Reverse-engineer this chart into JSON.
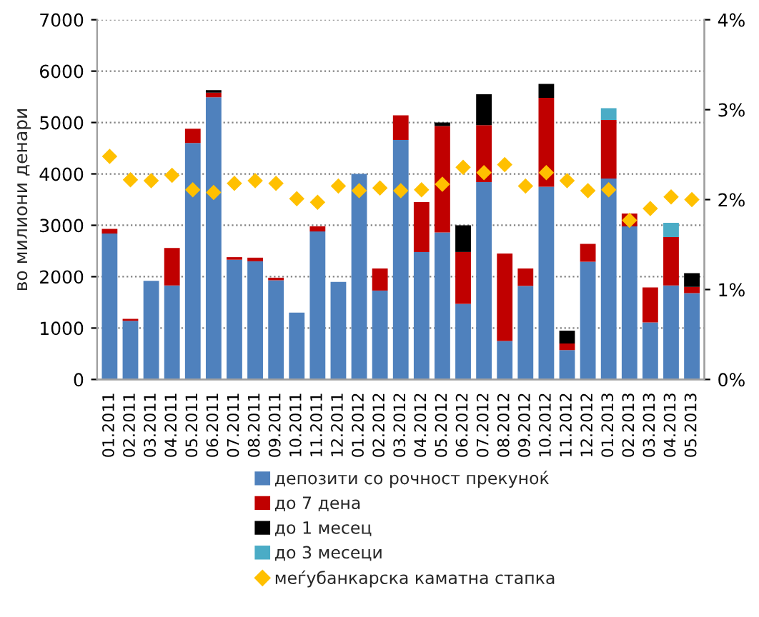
{
  "chart_data": {
    "type": "bar",
    "stacked": true,
    "ylabel": "во милиони денари",
    "categories": [
      "01.2011",
      "02.2011",
      "03.2011",
      "04.2011",
      "05.2011",
      "06.2011",
      "07.2011",
      "08.2011",
      "09.2011",
      "10.2011",
      "11.2011",
      "12.2011",
      "01.2012",
      "02.2012",
      "03.2012",
      "04.2012",
      "05.2012",
      "06.2012",
      "07.2012",
      "08.2012",
      "09.2012",
      "10.2012",
      "11.2012",
      "12.2012",
      "01.2013",
      "02.2013",
      "03.2013",
      "04.2013",
      "05.2013"
    ],
    "series": [
      {
        "name": "депозити со рочност прекуноќ",
        "color": "#4f81bd",
        "values": [
          2840,
          1140,
          1920,
          1830,
          4600,
          5490,
          2330,
          2300,
          1930,
          1300,
          2880,
          1900,
          4000,
          1730,
          4660,
          2480,
          2860,
          1470,
          3840,
          750,
          1820,
          3750,
          570,
          2290,
          3910,
          2980,
          1110,
          1830,
          1680
        ]
      },
      {
        "name": "до 7 дена",
        "color": "#c00000",
        "values": [
          90,
          40,
          null,
          730,
          280,
          90,
          50,
          70,
          50,
          null,
          100,
          null,
          null,
          430,
          480,
          970,
          2070,
          1010,
          1110,
          1700,
          340,
          1730,
          130,
          350,
          1140,
          250,
          680,
          940,
          120
        ]
      },
      {
        "name": "до 1 месец",
        "color": "#000000",
        "values": [
          null,
          null,
          null,
          null,
          null,
          50,
          null,
          null,
          null,
          null,
          null,
          null,
          null,
          null,
          null,
          null,
          70,
          520,
          600,
          null,
          null,
          270,
          250,
          null,
          null,
          null,
          null,
          null,
          270
        ]
      },
      {
        "name": "до 3 месеци",
        "color": "#4bacc6",
        "values": [
          null,
          null,
          null,
          null,
          null,
          null,
          null,
          null,
          null,
          null,
          null,
          null,
          null,
          null,
          null,
          null,
          null,
          null,
          null,
          null,
          null,
          null,
          null,
          null,
          230,
          null,
          null,
          280,
          null
        ]
      },
      {
        "name": "меѓубанкарска каматна стапка",
        "type": "scatter",
        "axis": "y2",
        "marker": "diamond",
        "color": "#ffc000",
        "values": [
          2.48,
          2.22,
          2.21,
          2.27,
          2.11,
          2.08,
          2.18,
          2.21,
          2.18,
          2.01,
          1.97,
          2.15,
          2.1,
          2.13,
          2.1,
          2.11,
          2.17,
          2.36,
          2.3,
          2.39,
          2.15,
          2.3,
          2.21,
          2.1,
          2.11,
          1.77,
          1.9,
          2.03,
          2.0
        ]
      }
    ],
    "ylim": [
      0,
      7000
    ],
    "yticks": [
      0,
      1000,
      2000,
      3000,
      4000,
      5000,
      6000,
      7000
    ],
    "y2lim": [
      0,
      4
    ],
    "y2ticks": [
      {
        "value": 0,
        "label": "0%"
      },
      {
        "value": 1,
        "label": "1%"
      },
      {
        "value": 2,
        "label": "2%"
      },
      {
        "value": 3,
        "label": "3%"
      },
      {
        "value": 4,
        "label": "4%"
      }
    ],
    "grid": "y",
    "legend": "bottom"
  }
}
